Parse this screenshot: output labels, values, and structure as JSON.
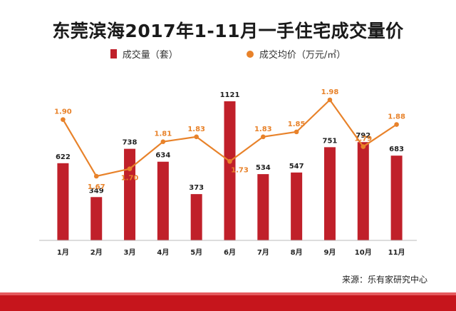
{
  "chart_data": {
    "type": "bar",
    "title": "东莞滨海2017年1-11月一手住宅成交量价",
    "categories": [
      "1月",
      "2月",
      "3月",
      "4月",
      "5月",
      "6月",
      "7月",
      "8月",
      "9月",
      "10月",
      "11月"
    ],
    "series": [
      {
        "name": "成交量（套）",
        "type": "bar",
        "values": [
          622,
          349,
          738,
          634,
          373,
          1121,
          534,
          547,
          751,
          792,
          683
        ],
        "color": "#c0202a"
      },
      {
        "name": "成交均价（万元/㎡）",
        "type": "line",
        "values": [
          1.9,
          1.67,
          1.7,
          1.81,
          1.83,
          1.73,
          1.83,
          1.85,
          1.98,
          1.79,
          1.88
        ],
        "color": "#e8822a"
      }
    ],
    "bar_axis_range": [
      0,
      1200
    ],
    "line_axis_range": [
      1.5,
      2.1
    ],
    "legend_position": "top-center",
    "grid": false
  },
  "source_text": "来源：乐有家研究中心",
  "colors": {
    "bar": "#c0202a",
    "line": "#e8822a",
    "footer": "#c6151c"
  }
}
